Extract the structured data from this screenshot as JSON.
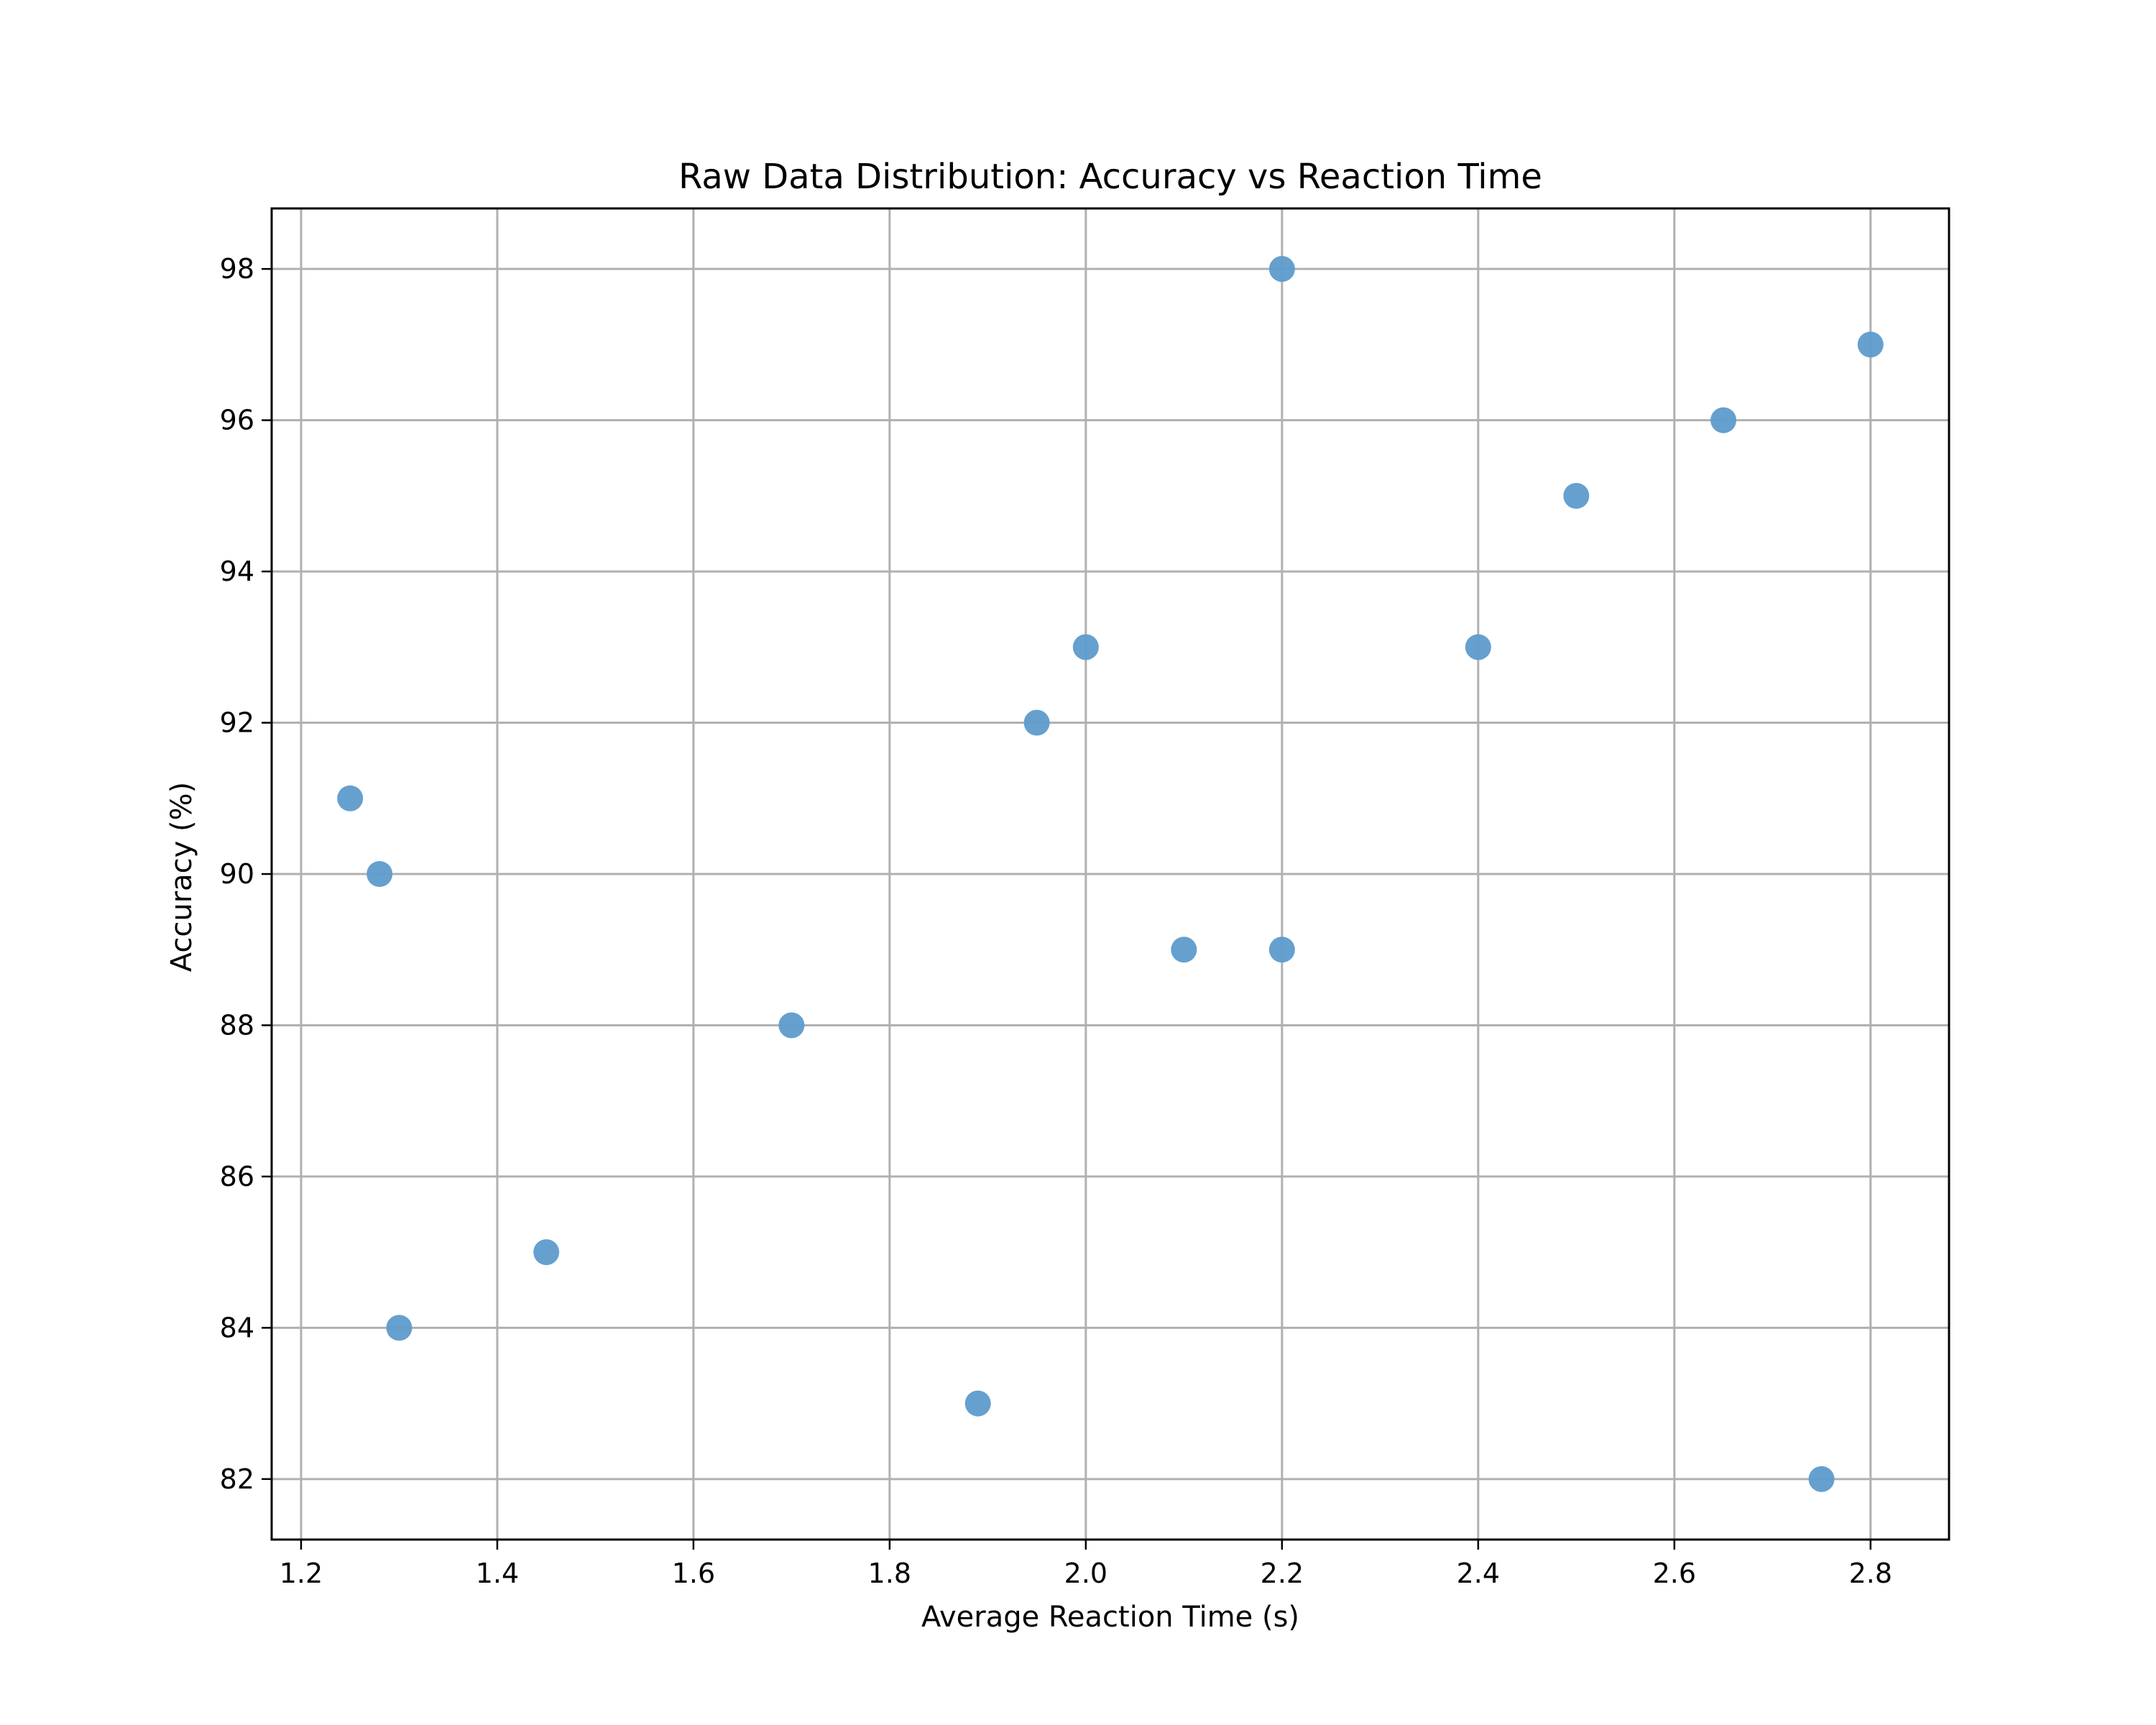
{
  "chart_data": {
    "type": "scatter",
    "title": "Raw Data Distribution: Accuracy vs Reaction Time",
    "xlabel": "Average Reaction Time (s)",
    "ylabel": "Accuracy (%)",
    "xlim": [
      1.17,
      2.88
    ],
    "ylim": [
      81.2,
      98.8
    ],
    "xticks": [
      1.2,
      1.4,
      1.6,
      1.8,
      2.0,
      2.2,
      2.4,
      2.6,
      2.8
    ],
    "xtick_labels": [
      "1.2",
      "1.4",
      "1.6",
      "1.8",
      "2.0",
      "2.2",
      "2.4",
      "2.6",
      "2.8"
    ],
    "yticks": [
      82,
      84,
      86,
      88,
      90,
      92,
      94,
      96,
      98
    ],
    "ytick_labels": [
      "82",
      "84",
      "86",
      "88",
      "90",
      "92",
      "94",
      "96",
      "98"
    ],
    "grid": true,
    "legend": false,
    "marker_color": "#5f9ccd",
    "points": [
      {
        "x": 1.25,
        "y": 91
      },
      {
        "x": 1.28,
        "y": 90
      },
      {
        "x": 1.3,
        "y": 84
      },
      {
        "x": 1.45,
        "y": 85
      },
      {
        "x": 1.7,
        "y": 88
      },
      {
        "x": 1.89,
        "y": 83
      },
      {
        "x": 1.95,
        "y": 92
      },
      {
        "x": 2.0,
        "y": 93
      },
      {
        "x": 2.1,
        "y": 89
      },
      {
        "x": 2.2,
        "y": 98
      },
      {
        "x": 2.2,
        "y": 89
      },
      {
        "x": 2.4,
        "y": 93
      },
      {
        "x": 2.5,
        "y": 95
      },
      {
        "x": 2.65,
        "y": 96
      },
      {
        "x": 2.75,
        "y": 82
      },
      {
        "x": 2.8,
        "y": 97
      }
    ]
  }
}
